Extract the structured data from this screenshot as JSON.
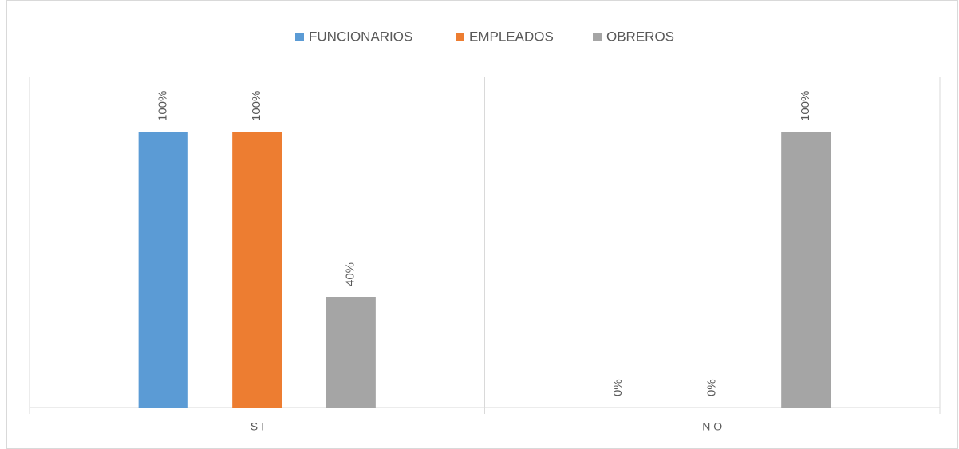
{
  "chart_data": {
    "type": "bar",
    "categories": [
      "S I",
      "N O"
    ],
    "series": [
      {
        "name": "FUNCIONARIOS",
        "color": "#5b9bd5",
        "values": [
          100,
          0
        ],
        "value_labels": [
          "100%",
          "0%"
        ]
      },
      {
        "name": "EMPLEADOS",
        "color": "#ed7d31",
        "values": [
          100,
          0
        ],
        "value_labels": [
          "100%",
          "0%"
        ]
      },
      {
        "name": "OBREROS",
        "color": "#a5a5a5",
        "values": [
          40,
          100
        ],
        "value_labels": [
          "40%",
          "100%"
        ]
      }
    ],
    "ylim": [
      0,
      120
    ],
    "legend": "top"
  }
}
